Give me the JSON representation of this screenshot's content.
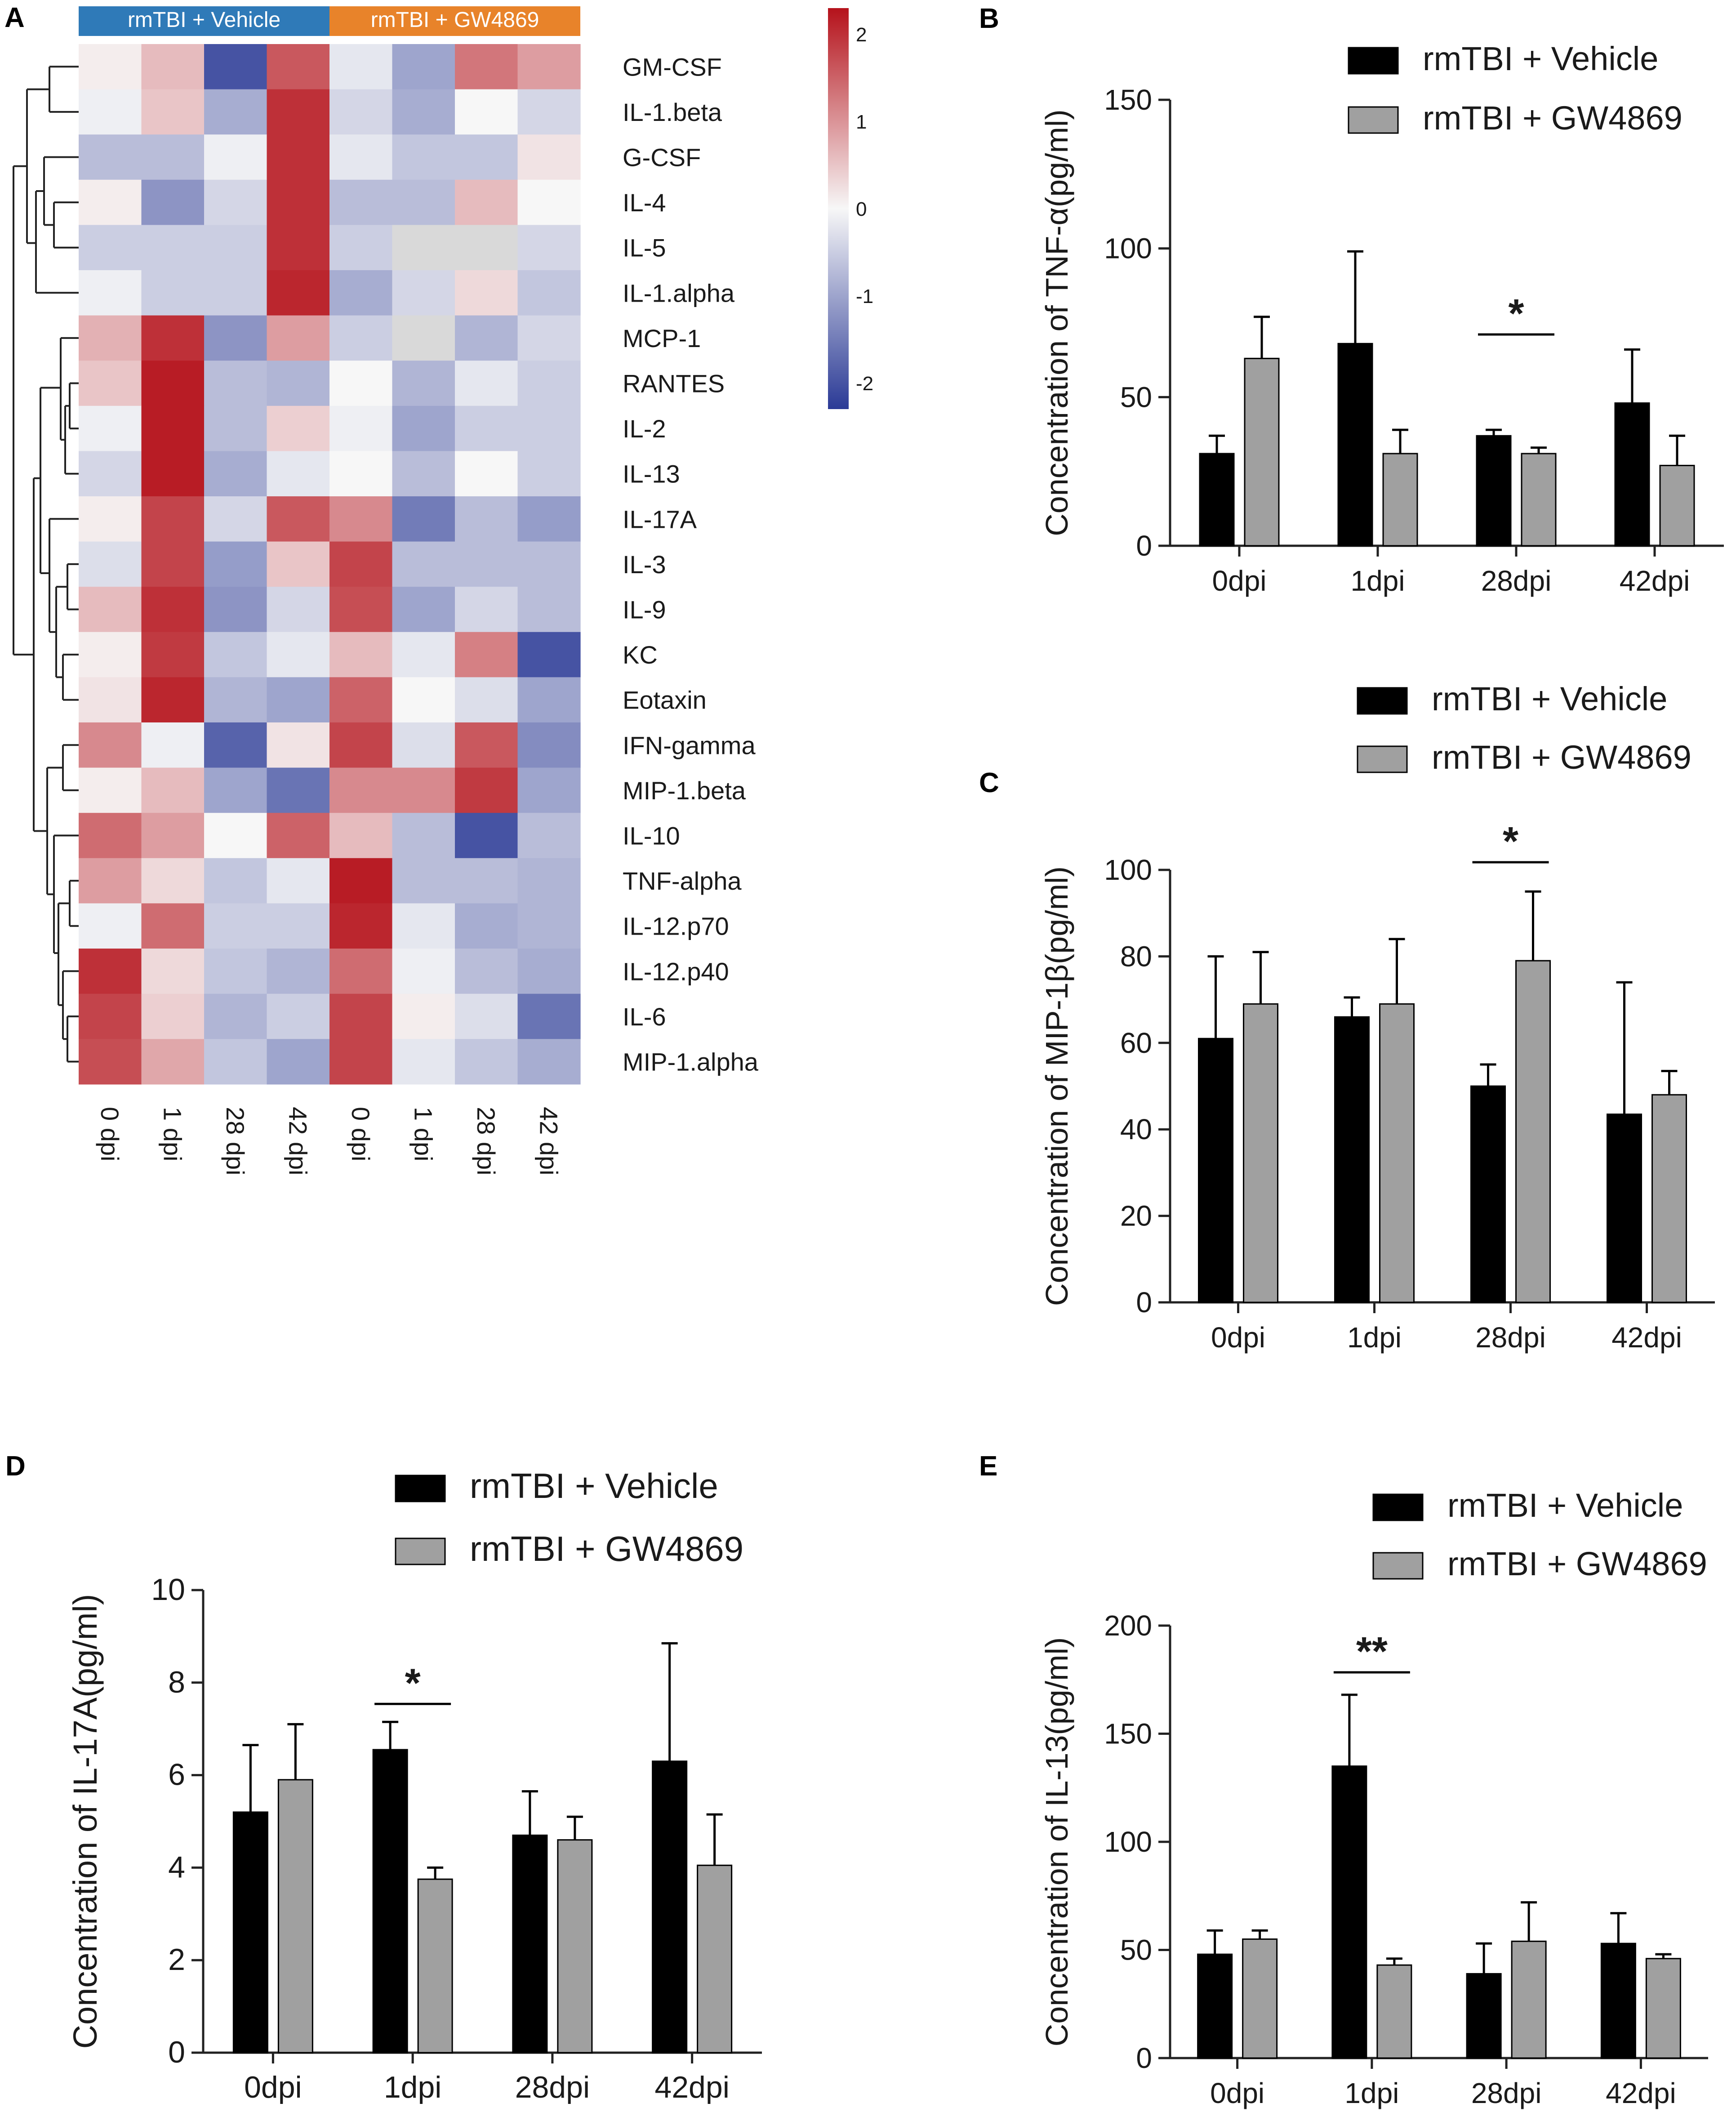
{
  "panels": {
    "A": {
      "label": "A"
    },
    "B": {
      "label": "B"
    },
    "C": {
      "label": "C"
    },
    "D": {
      "label": "D"
    },
    "E": {
      "label": "E"
    }
  },
  "colors": {
    "vehicle_bar": "#000000",
    "gw_bar": "#a0a0a0",
    "group_vehicle": "#2f7ab8",
    "group_gw": "#e8832a",
    "heat_low": "#2b3a96",
    "heat_mid": "#f7f7f7",
    "heat_high": "#b5121b",
    "heat_na": "#d9d9d9"
  },
  "chart_data": [
    {
      "panel": "A",
      "type": "heatmap",
      "group_labels": [
        "rmTBI + Vehicle",
        "rmTBI + GW4869"
      ],
      "columns": [
        "0 dpi",
        "1 dpi",
        "28 dpi",
        "42 dpi",
        "0 dpi",
        "1 dpi",
        "28 dpi",
        "42 dpi"
      ],
      "rows": [
        "GM-CSF",
        "IL-1.beta",
        "G-CSF",
        "IL-4",
        "IL-5",
        "IL-1.alpha",
        "MCP-1",
        "RANTES",
        "IL-2",
        "IL-13",
        "IL-17A",
        "IL-3",
        "IL-9",
        "KC",
        "Eotaxin",
        "IFN-gamma",
        "MIP-1.beta",
        "IL-10",
        "TNF-alpha",
        "IL-12.p70",
        "IL-12.p40",
        "IL-6",
        "MIP-1.alpha"
      ],
      "values": [
        [
          0.1,
          0.6,
          -2.0,
          1.6,
          -0.2,
          -1.0,
          1.3,
          0.9
        ],
        [
          -0.1,
          0.5,
          -0.9,
          2.0,
          -0.4,
          -0.9,
          0.0,
          -0.4
        ],
        [
          -0.7,
          -0.7,
          -0.1,
          2.0,
          -0.2,
          -0.6,
          -0.6,
          0.2
        ],
        [
          0.1,
          -1.2,
          -0.4,
          2.0,
          -0.7,
          -0.7,
          0.6,
          0.0
        ],
        [
          -0.5,
          -0.5,
          -0.5,
          2.0,
          -0.5,
          null,
          null,
          -0.4
        ],
        [
          -0.1,
          -0.5,
          -0.5,
          2.1,
          -0.9,
          -0.4,
          0.3,
          -0.6
        ],
        [
          0.7,
          2.0,
          -1.2,
          0.9,
          -0.5,
          null,
          -0.8,
          -0.4
        ],
        [
          0.5,
          2.2,
          -0.7,
          -0.8,
          0.0,
          -0.8,
          -0.2,
          -0.5
        ],
        [
          -0.1,
          2.2,
          -0.7,
          0.4,
          -0.1,
          -1.0,
          -0.5,
          -0.5
        ],
        [
          -0.4,
          2.2,
          -0.9,
          -0.2,
          0.0,
          -0.7,
          0.0,
          -0.5
        ],
        [
          0.1,
          1.8,
          -0.4,
          1.6,
          1.1,
          -1.5,
          -0.7,
          -1.1
        ],
        [
          -0.3,
          1.8,
          -1.1,
          0.5,
          1.8,
          -0.7,
          -0.7,
          -0.7
        ],
        [
          0.6,
          2.0,
          -1.2,
          -0.4,
          1.7,
          -1.0,
          -0.4,
          -0.7
        ],
        [
          0.1,
          1.9,
          -0.6,
          -0.2,
          0.6,
          -0.2,
          1.2,
          -2.0
        ],
        [
          0.2,
          2.1,
          -0.8,
          -1.0,
          1.5,
          0.0,
          -0.3,
          -1.0
        ],
        [
          1.1,
          -0.1,
          -1.8,
          0.2,
          1.8,
          -0.3,
          1.6,
          -1.3
        ],
        [
          0.1,
          0.6,
          -1.0,
          -1.6,
          1.1,
          1.1,
          1.9,
          -1.0
        ],
        [
          1.4,
          0.9,
          0.0,
          1.5,
          0.6,
          -0.7,
          -2.0,
          -0.7
        ],
        [
          0.9,
          0.3,
          -0.6,
          -0.2,
          2.2,
          -0.7,
          -0.7,
          -0.8
        ],
        [
          -0.1,
          1.4,
          -0.5,
          -0.5,
          2.1,
          -0.2,
          -0.9,
          -0.8
        ],
        [
          2.0,
          0.3,
          -0.6,
          -0.8,
          1.4,
          -0.1,
          -0.7,
          -0.9
        ],
        [
          1.8,
          0.4,
          -0.8,
          -0.5,
          1.8,
          0.1,
          -0.3,
          -1.6
        ],
        [
          1.7,
          0.8,
          -0.6,
          -1.0,
          1.8,
          -0.2,
          -0.6,
          -0.9
        ]
      ],
      "colorbar": {
        "range": [
          -2.3,
          2.3
        ],
        "ticks": [
          "2",
          "1",
          "0",
          "-1",
          "-2"
        ],
        "tick_values": [
          2,
          1,
          0,
          -1,
          -2
        ]
      }
    },
    {
      "panel": "B",
      "type": "bar",
      "ylabel": "Concentration of TNF-α(pg/ml)",
      "ylim": [
        0,
        150
      ],
      "yticks": [
        0,
        50,
        100,
        150
      ],
      "categories": [
        "0dpi",
        "1dpi",
        "28dpi",
        "42dpi"
      ],
      "series": [
        {
          "name": "rmTBI + Vehicle",
          "values": [
            31,
            68,
            37,
            48
          ],
          "errors": [
            6,
            31,
            2,
            18
          ]
        },
        {
          "name": "rmTBI + GW4869",
          "values": [
            63,
            31,
            31,
            27
          ],
          "errors": [
            14,
            8,
            2,
            10
          ]
        }
      ],
      "significance": [
        {
          "category_index": 2,
          "label": "*"
        }
      ]
    },
    {
      "panel": "C",
      "type": "bar",
      "ylabel": "Concentration of MIP-1β(pg/ml)",
      "ylim": [
        0,
        100
      ],
      "yticks": [
        0,
        20,
        40,
        60,
        80,
        100
      ],
      "categories": [
        "0dpi",
        "1dpi",
        "28dpi",
        "42dpi"
      ],
      "series": [
        {
          "name": "rmTBI + Vehicle",
          "values": [
            61,
            66,
            50,
            43.5
          ],
          "errors": [
            19,
            4.5,
            5,
            30.5
          ]
        },
        {
          "name": "rmTBI + GW4869",
          "values": [
            69,
            69,
            79,
            48
          ],
          "errors": [
            12,
            15,
            16,
            5.5
          ]
        }
      ],
      "significance": [
        {
          "category_index": 2,
          "label": "*"
        }
      ]
    },
    {
      "panel": "D",
      "type": "bar",
      "ylabel": "Concentration of IL-17A(pg/ml)",
      "ylim": [
        0,
        10
      ],
      "yticks": [
        0,
        2,
        4,
        6,
        8,
        10
      ],
      "categories": [
        "0dpi",
        "1dpi",
        "28dpi",
        "42dpi"
      ],
      "series": [
        {
          "name": "rmTBI + Vehicle",
          "values": [
            5.2,
            6.55,
            4.7,
            6.3
          ],
          "errors": [
            1.45,
            0.6,
            0.95,
            2.55
          ]
        },
        {
          "name": "rmTBI + GW4869",
          "values": [
            5.9,
            3.75,
            4.6,
            4.05
          ],
          "errors": [
            1.2,
            0.25,
            0.5,
            1.1
          ]
        }
      ],
      "significance": [
        {
          "category_index": 1,
          "label": "*"
        }
      ]
    },
    {
      "panel": "E",
      "type": "bar",
      "ylabel": "Concentration of IL-13(pg/ml)",
      "ylim": [
        0,
        200
      ],
      "yticks": [
        0,
        50,
        100,
        150,
        200
      ],
      "categories": [
        "0dpi",
        "1dpi",
        "28dpi",
        "42dpi"
      ],
      "series": [
        {
          "name": "rmTBI + Vehicle",
          "values": [
            48,
            135,
            39,
            53
          ],
          "errors": [
            11,
            33,
            14,
            14
          ]
        },
        {
          "name": "rmTBI + GW4869",
          "values": [
            55,
            43,
            54,
            46
          ],
          "errors": [
            4,
            3,
            18,
            2
          ]
        }
      ],
      "significance": [
        {
          "category_index": 1,
          "label": "**"
        }
      ]
    }
  ]
}
